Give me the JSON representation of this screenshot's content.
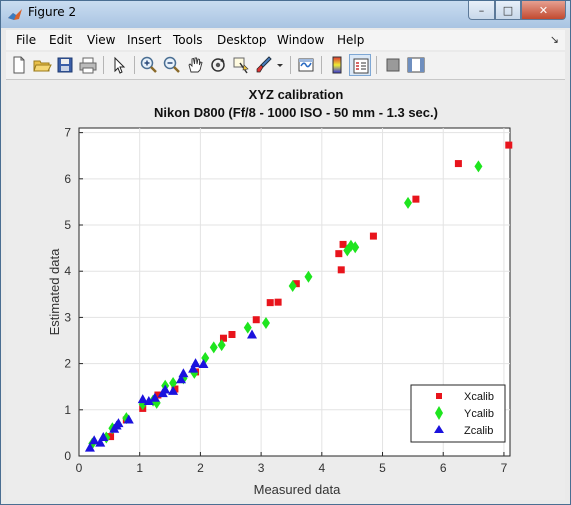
{
  "window": {
    "title": "Figure 2",
    "controls": {
      "minimize": "–",
      "maximize": "□",
      "close": "✕"
    }
  },
  "menu": [
    "File",
    "Edit",
    "View",
    "Insert",
    "Tools",
    "Desktop",
    "Window",
    "Help"
  ],
  "dock_arrow": "↘",
  "toolbar": {
    "icons": [
      "new-figure-icon",
      "open-file-icon",
      "save-icon",
      "print-icon",
      "edit-plot-arrow-icon",
      "zoom-in-icon",
      "zoom-out-icon",
      "pan-hand-icon",
      "rotate-3d-icon",
      "data-cursor-icon",
      "brush-icon",
      "brush-dropdown-icon",
      "link-plot-icon",
      "insert-colorbar-icon",
      "insert-legend-icon",
      "hide-plot-tools-icon",
      "show-plot-tools-icon"
    ]
  },
  "colors": {
    "xcalib": "#e8141c",
    "ycalib": "#1ee51e",
    "zcalib": "#1b12dd",
    "figure_bg": "#ececec"
  },
  "chart_data": {
    "type": "scatter",
    "title": "XYZ calibration",
    "subtitle": "Nikon D800 (Ff/8 - 1000 ISO - 50 mm - 1.3 sec.)",
    "xlabel": "Measured data",
    "ylabel": "Estimated data",
    "xlim": [
      0,
      7.1
    ],
    "ylim": [
      0,
      7.1
    ],
    "xticks": [
      0,
      1,
      2,
      3,
      4,
      5,
      6,
      7
    ],
    "yticks": [
      0,
      1,
      2,
      3,
      4,
      5,
      6,
      7
    ],
    "grid": true,
    "legend_position": "bottom-right",
    "series": [
      {
        "name": "Xcalib",
        "marker": "square",
        "color": "#e8141c",
        "points": [
          [
            0.52,
            0.42
          ],
          [
            0.78,
            0.78
          ],
          [
            1.05,
            1.03
          ],
          [
            1.3,
            1.32
          ],
          [
            1.58,
            1.45
          ],
          [
            1.92,
            1.82
          ],
          [
            2.38,
            2.55
          ],
          [
            2.52,
            2.63
          ],
          [
            2.92,
            2.95
          ],
          [
            3.15,
            3.32
          ],
          [
            3.28,
            3.33
          ],
          [
            3.58,
            3.73
          ],
          [
            4.28,
            4.38
          ],
          [
            4.32,
            4.03
          ],
          [
            4.35,
            4.58
          ],
          [
            4.85,
            4.76
          ],
          [
            5.55,
            5.56
          ],
          [
            6.25,
            6.33
          ],
          [
            7.08,
            6.73
          ]
        ]
      },
      {
        "name": "Ycalib",
        "marker": "diamond",
        "color": "#1ee51e",
        "points": [
          [
            0.22,
            0.27
          ],
          [
            0.45,
            0.4
          ],
          [
            0.55,
            0.6
          ],
          [
            0.78,
            0.82
          ],
          [
            1.05,
            1.12
          ],
          [
            1.22,
            1.2
          ],
          [
            1.28,
            1.15
          ],
          [
            1.42,
            1.52
          ],
          [
            1.55,
            1.58
          ],
          [
            1.72,
            1.68
          ],
          [
            1.9,
            1.8
          ],
          [
            2.08,
            2.12
          ],
          [
            2.22,
            2.35
          ],
          [
            2.35,
            2.4
          ],
          [
            2.78,
            2.78
          ],
          [
            3.08,
            2.88
          ],
          [
            3.52,
            3.68
          ],
          [
            3.78,
            3.88
          ],
          [
            4.42,
            4.45
          ],
          [
            4.48,
            4.55
          ],
          [
            4.55,
            4.52
          ],
          [
            5.42,
            5.48
          ],
          [
            6.58,
            6.27
          ]
        ]
      },
      {
        "name": "Zcalib",
        "marker": "triangle",
        "color": "#1b12dd",
        "points": [
          [
            0.18,
            0.17
          ],
          [
            0.25,
            0.33
          ],
          [
            0.35,
            0.28
          ],
          [
            0.4,
            0.4
          ],
          [
            0.58,
            0.58
          ],
          [
            0.62,
            0.65
          ],
          [
            0.65,
            0.7
          ],
          [
            0.82,
            0.78
          ],
          [
            1.05,
            1.22
          ],
          [
            1.15,
            1.18
          ],
          [
            1.25,
            1.25
          ],
          [
            1.38,
            1.35
          ],
          [
            1.42,
            1.43
          ],
          [
            1.55,
            1.4
          ],
          [
            1.68,
            1.65
          ],
          [
            1.72,
            1.78
          ],
          [
            1.88,
            1.88
          ],
          [
            1.92,
            2.0
          ],
          [
            2.05,
            1.98
          ],
          [
            2.85,
            2.62
          ]
        ]
      }
    ]
  }
}
